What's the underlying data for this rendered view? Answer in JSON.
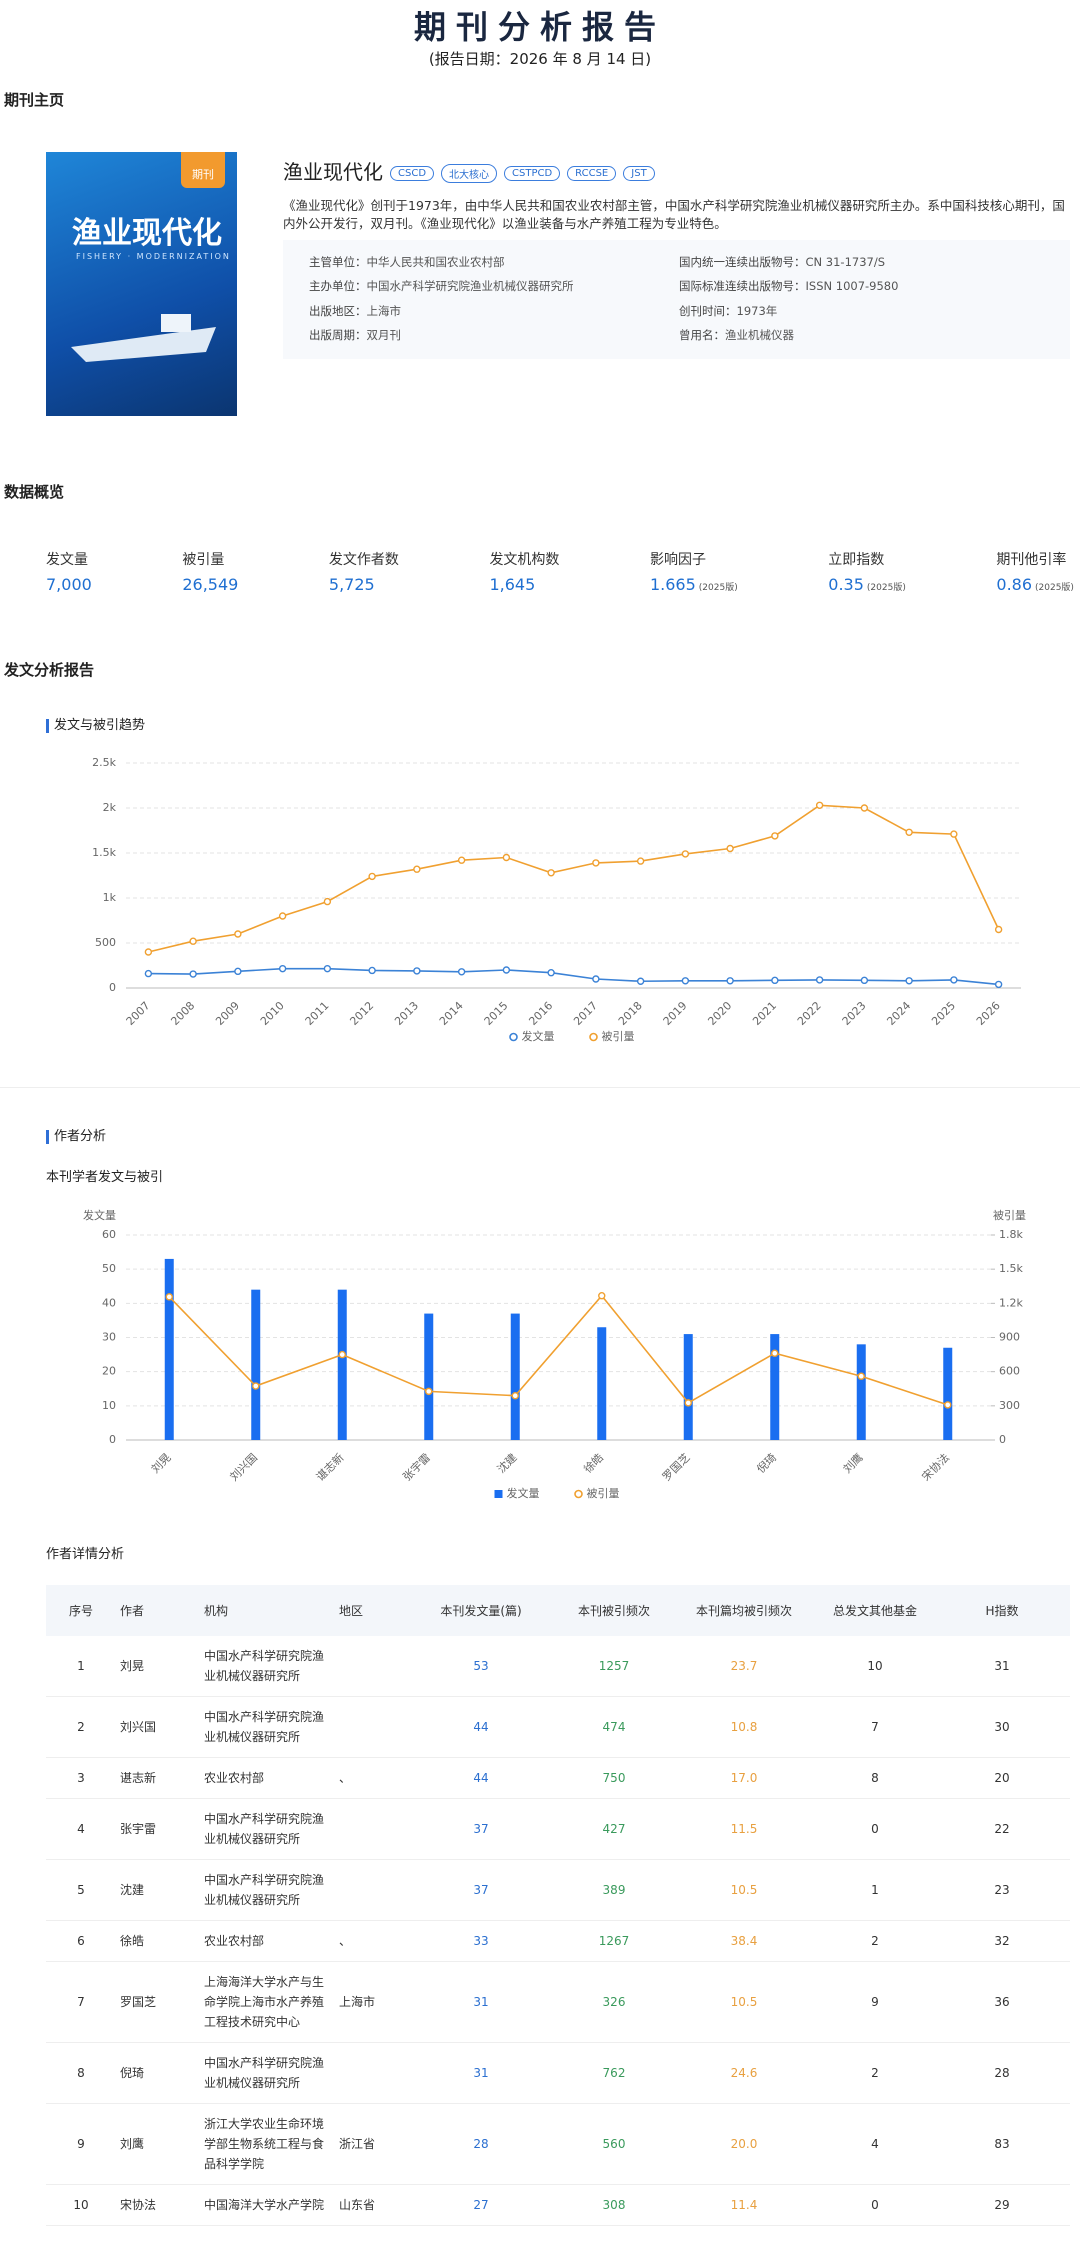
{
  "header": {
    "title": "期刊分析报告",
    "date": "(报告日期：2026 年 8 月 14 日)"
  },
  "sections": {
    "journal_home": "期刊主页",
    "overview": "数据概览",
    "publication_report": "发文分析报告",
    "author_analysis": "作者分析",
    "author_detail": "作者详情分析"
  },
  "journal": {
    "cover": {
      "badge": "期刊",
      "title": "渔业现代化",
      "subtitle": "FISHERY · MODERNIZATION"
    },
    "name": "渔业现代化",
    "tags": [
      "CSCD",
      "北大核心",
      "CSTPCD",
      "RCCSE",
      "JST"
    ],
    "description": "《渔业现代化》创刊于1973年，由中华人民共和国农业农村部主管，中国水产科学研究院渔业机械仪器研究所主办。系中国科技核心期刊，国内外公开发行，双月刊。《渔业现代化》以渔业装备与水产养殖工程为专业特色。",
    "info": [
      {
        "label": "主管单位：",
        "value": "中华人民共和国农业农村部"
      },
      {
        "label": "国内统一连续出版物号：",
        "value": "CN 31-1737/S"
      },
      {
        "label": "主办单位：",
        "value": "中国水产科学研究院渔业机械仪器研究所"
      },
      {
        "label": "国际标准连续出版物号：",
        "value": "ISSN 1007-9580"
      },
      {
        "label": "出版地区：",
        "value": "上海市"
      },
      {
        "label": "创刊时间：",
        "value": "1973年"
      },
      {
        "label": "出版周期：",
        "value": "双月刊"
      },
      {
        "label": "曾用名：",
        "value": "渔业机械仪器"
      }
    ]
  },
  "stats": [
    {
      "label": "发文量",
      "value": "7,000"
    },
    {
      "label": "被引量",
      "value": "26,549"
    },
    {
      "label": "发文作者数",
      "value": "5,725"
    },
    {
      "label": "发文机构数",
      "value": "1,645"
    },
    {
      "label": "影响因子",
      "value": "1.665",
      "note": "(2025版)"
    },
    {
      "label": "立即指数",
      "value": "0.35",
      "note": "(2025版)"
    },
    {
      "label": "期刊他引率",
      "value": "0.86",
      "note": "(2025版)"
    }
  ],
  "chart_data": [
    {
      "type": "line",
      "title": "发文与被引趋势",
      "categories": [
        "2007",
        "2008",
        "2009",
        "2010",
        "2011",
        "2012",
        "2013",
        "2014",
        "2015",
        "2016",
        "2017",
        "2018",
        "2019",
        "2020",
        "2021",
        "2022",
        "2023",
        "2024",
        "2025",
        "2026"
      ],
      "series": [
        {
          "name": "发文量",
          "color": "#3b82d6",
          "values": [
            160,
            155,
            185,
            215,
            215,
            195,
            190,
            180,
            200,
            170,
            100,
            75,
            80,
            80,
            85,
            90,
            85,
            80,
            90,
            40
          ]
        },
        {
          "name": "被引量",
          "color": "#f0a030",
          "values": [
            400,
            520,
            600,
            800,
            960,
            1240,
            1320,
            1420,
            1450,
            1280,
            1390,
            1410,
            1490,
            1550,
            1690,
            2030,
            2000,
            1730,
            1710,
            650
          ]
        }
      ],
      "ylim": [
        0,
        2500
      ],
      "yticks": [
        0,
        500,
        {
          "value": 1000,
          "label": "1k"
        },
        {
          "value": 1500,
          "label": "1.5k"
        },
        {
          "value": 2000,
          "label": "2k"
        },
        {
          "value": 2500,
          "label": "2.5k"
        }
      ],
      "grid": true
    },
    {
      "type": "bar",
      "title": "本刊学者发文与被引",
      "y_label": "发文量",
      "y2_label": "被引量",
      "categories": [
        "刘晃",
        "刘兴国",
        "谌志新",
        "张宇雷",
        "沈建",
        "徐皓",
        "罗国芝",
        "倪琦",
        "刘鹰",
        "宋协法"
      ],
      "series": [
        {
          "name": "发文量",
          "type": "bar",
          "color": "#1a6ef0",
          "values": [
            53,
            44,
            44,
            37,
            37,
            33,
            31,
            31,
            28,
            27
          ]
        },
        {
          "name": "被引量",
          "type": "line",
          "axis": "y2",
          "color": "#f0a030",
          "values": [
            1257,
            474,
            750,
            427,
            389,
            1267,
            326,
            762,
            560,
            308
          ]
        }
      ],
      "ylim": [
        0,
        60
      ],
      "yticks": [
        0,
        10,
        20,
        30,
        40,
        50,
        60
      ],
      "y2lim": [
        0,
        1800
      ],
      "y2ticks": [
        0,
        300,
        600,
        900,
        {
          "value": 1200,
          "label": "1.2k"
        },
        {
          "value": 1500,
          "label": "1.5k"
        },
        {
          "value": 1800,
          "label": "1.8k"
        }
      ],
      "grid": true
    }
  ],
  "table": {
    "columns": [
      "序号",
      "作者",
      "机构",
      "地区",
      "本刊发文量(篇)",
      "本刊被引频次",
      "本刊篇均被引频次",
      "总发文其他基金",
      "H指数"
    ],
    "rows": [
      [
        "1",
        "刘晃",
        "中国水产科学研究院渔业机械仪器研究所",
        "",
        "53",
        "1257",
        "23.7",
        "10",
        "31"
      ],
      [
        "2",
        "刘兴国",
        "中国水产科学研究院渔业机械仪器研究所",
        "",
        "44",
        "474",
        "10.8",
        "7",
        "30"
      ],
      [
        "3",
        "谌志新",
        "农业农村部",
        "、",
        "44",
        "750",
        "17.0",
        "8",
        "20"
      ],
      [
        "4",
        "张宇雷",
        "中国水产科学研究院渔业机械仪器研究所",
        "",
        "37",
        "427",
        "11.5",
        "0",
        "22"
      ],
      [
        "5",
        "沈建",
        "中国水产科学研究院渔业机械仪器研究所",
        "",
        "37",
        "389",
        "10.5",
        "1",
        "23"
      ],
      [
        "6",
        "徐皓",
        "农业农村部",
        "、",
        "33",
        "1267",
        "38.4",
        "2",
        "32"
      ],
      [
        "7",
        "罗国芝",
        "上海海洋大学水产与生命学院上海市水产养殖工程技术研究中心",
        "上海市",
        "31",
        "326",
        "10.5",
        "9",
        "36"
      ],
      [
        "8",
        "倪琦",
        "中国水产科学研究院渔业机械仪器研究所",
        "",
        "31",
        "762",
        "24.6",
        "2",
        "28"
      ],
      [
        "9",
        "刘鹰",
        "浙江大学农业生命环境学部生物系统工程与食品科学学院",
        "浙江省",
        "28",
        "560",
        "20.0",
        "4",
        "83"
      ],
      [
        "10",
        "宋协法",
        "中国海洋大学水产学院",
        "山东省",
        "27",
        "308",
        "11.4",
        "0",
        "29"
      ]
    ]
  }
}
